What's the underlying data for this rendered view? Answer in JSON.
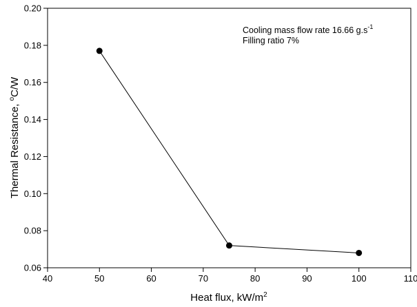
{
  "chart_data": {
    "type": "line",
    "xlabel": "Heat flux, kW/m",
    "xlabel_sup": "2",
    "ylabel_pre": "Thermal Resistance, ",
    "ylabel_sup": "o",
    "ylabel_post": "C/W",
    "xlim": [
      40,
      110
    ],
    "ylim": [
      0.06,
      0.2
    ],
    "xticks": [
      "40",
      "50",
      "60",
      "70",
      "80",
      "90",
      "100",
      "110"
    ],
    "yticks": [
      "0.06",
      "0.08",
      "0.10",
      "0.12",
      "0.14",
      "0.16",
      "0.18",
      "0.20"
    ],
    "series": [
      {
        "x": [
          50,
          75,
          100
        ],
        "y": [
          0.177,
          0.072,
          0.068
        ]
      }
    ],
    "annotations": {
      "line1": "Cooling mass flow rate 16.66 g.s",
      "line1_sup": "-1",
      "line2": "Filling ratio 7%"
    },
    "grid": false,
    "line_color": "#000000",
    "marker_color": "#000000"
  }
}
